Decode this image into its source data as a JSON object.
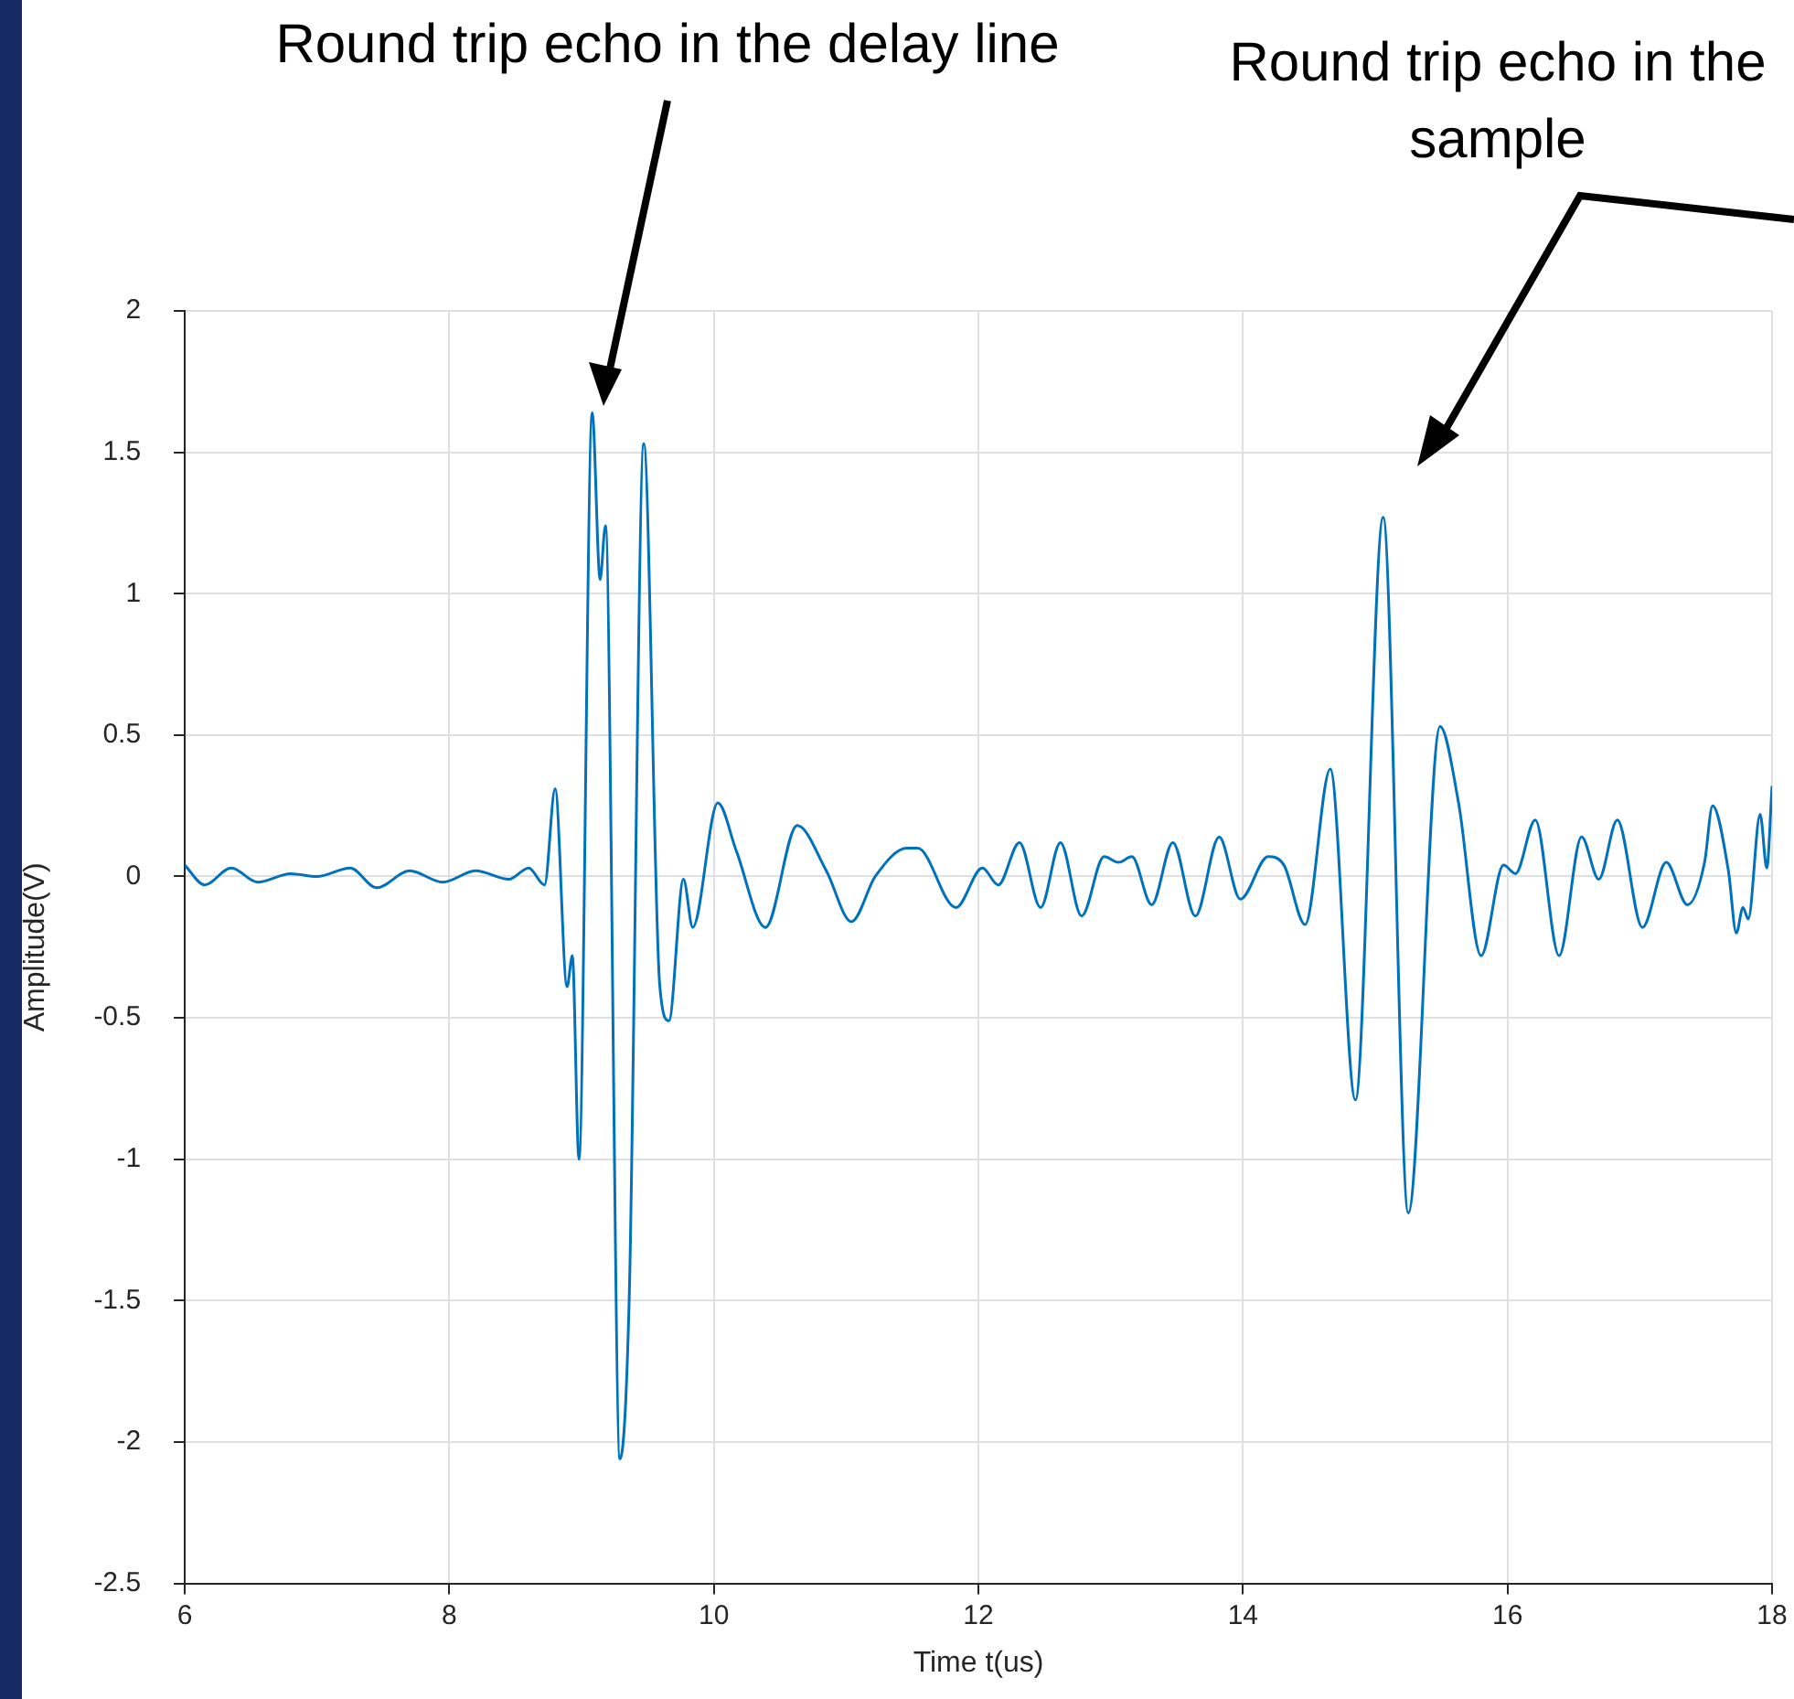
{
  "chart_data": {
    "type": "line",
    "xlabel": "Time t(us)",
    "ylabel": "Amplitude(V)",
    "annotations": [
      "Round trip echo in the delay line",
      "Round trip echo in the sample"
    ],
    "x": [
      6.0,
      6.15,
      6.35,
      6.55,
      6.8,
      7.0,
      7.25,
      7.45,
      7.7,
      7.95,
      8.2,
      8.45,
      8.6,
      8.72,
      8.8,
      8.89,
      8.93,
      8.98,
      9.08,
      9.14,
      9.18,
      9.29,
      9.36,
      9.47,
      9.59,
      9.66,
      9.77,
      9.84,
      10.03,
      10.17,
      10.39,
      10.63,
      10.85,
      11.04,
      11.22,
      11.46,
      11.54,
      11.83,
      12.03,
      12.15,
      12.31,
      12.47,
      12.62,
      12.78,
      12.95,
      13.06,
      13.16,
      13.31,
      13.47,
      13.64,
      13.82,
      13.98,
      14.19,
      14.31,
      14.47,
      14.66,
      14.85,
      15.06,
      15.25,
      15.49,
      15.63,
      15.8,
      15.97,
      16.06,
      16.21,
      16.39,
      16.56,
      16.69,
      16.83,
      17.02,
      17.2,
      17.36,
      17.49,
      17.55,
      17.67,
      17.73,
      17.78,
      17.82,
      17.91,
      17.96,
      18.0
    ],
    "values": [
      0.04,
      -0.03,
      0.03,
      -0.02,
      0.01,
      0.0,
      0.03,
      -0.04,
      0.02,
      -0.02,
      0.02,
      -0.01,
      0.03,
      -0.03,
      0.31,
      -0.39,
      -0.28,
      -1.0,
      1.64,
      1.05,
      1.24,
      -2.06,
      -1.49,
      1.53,
      -0.38,
      -0.51,
      -0.01,
      -0.18,
      0.26,
      0.09,
      -0.18,
      0.18,
      0.02,
      -0.16,
      0.0,
      0.1,
      0.1,
      -0.11,
      0.03,
      -0.03,
      0.12,
      -0.11,
      0.12,
      -0.14,
      0.07,
      0.05,
      0.07,
      -0.1,
      0.12,
      -0.14,
      0.14,
      -0.08,
      0.07,
      0.04,
      -0.17,
      0.38,
      -0.79,
      1.27,
      -1.19,
      0.53,
      0.26,
      -0.28,
      0.04,
      0.01,
      0.2,
      -0.28,
      0.14,
      -0.01,
      0.2,
      -0.18,
      0.05,
      -0.1,
      0.05,
      0.25,
      0.02,
      -0.2,
      -0.11,
      -0.15,
      0.22,
      0.03,
      0.32
    ],
    "color": "#0072bd",
    "xlim": [
      6,
      18
    ],
    "ylim": [
      -2.5,
      2
    ],
    "xticks": [
      6,
      8,
      10,
      12,
      14,
      16,
      18
    ],
    "yticks": [
      -2.5,
      -2,
      -1.5,
      -1,
      -0.5,
      0,
      0.5,
      1,
      1.5,
      2
    ],
    "grid": true
  }
}
